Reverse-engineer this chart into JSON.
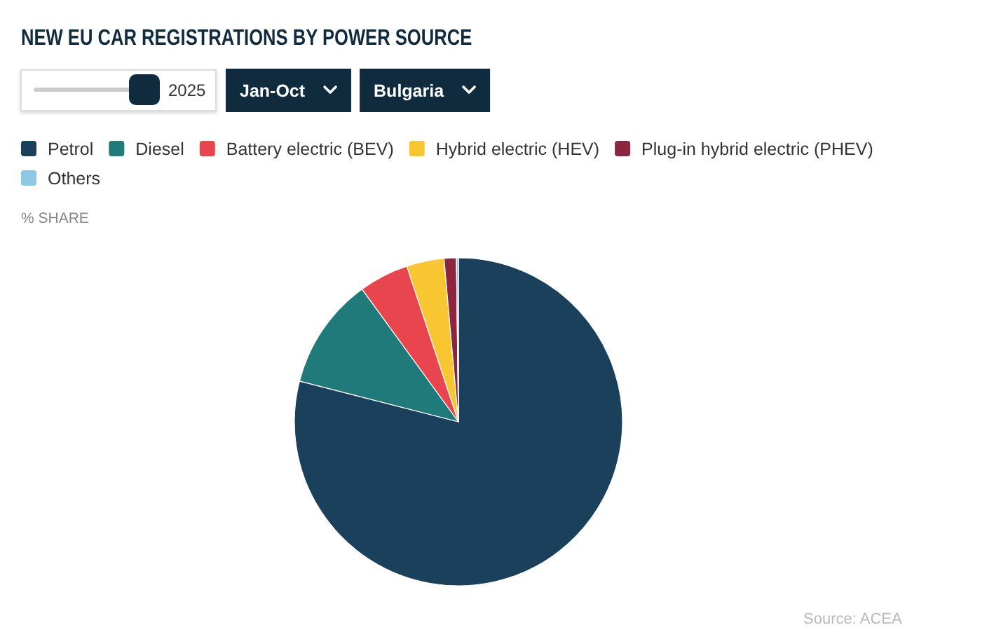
{
  "chart_data": {
    "type": "pie",
    "title": "NEW EU CAR REGISTRATIONS BY POWER SOURCE",
    "subtitle": "% SHARE",
    "categories": [
      "Petrol",
      "Diesel",
      "Battery electric (BEV)",
      "Hybrid electric (HEV)",
      "Plug-in hybrid electric (PHEV)",
      "Others"
    ],
    "values": [
      79.0,
      11.0,
      4.9,
      3.7,
      1.2,
      0.2
    ],
    "colors": [
      "#1b405c",
      "#217a7a",
      "#e8454f",
      "#f8c630",
      "#8b2540",
      "#8ec8e8"
    ],
    "legend": "top",
    "annotations": [
      "2025",
      "Jan-Oct",
      "Bulgaria",
      "Source: ACEA"
    ]
  }
}
